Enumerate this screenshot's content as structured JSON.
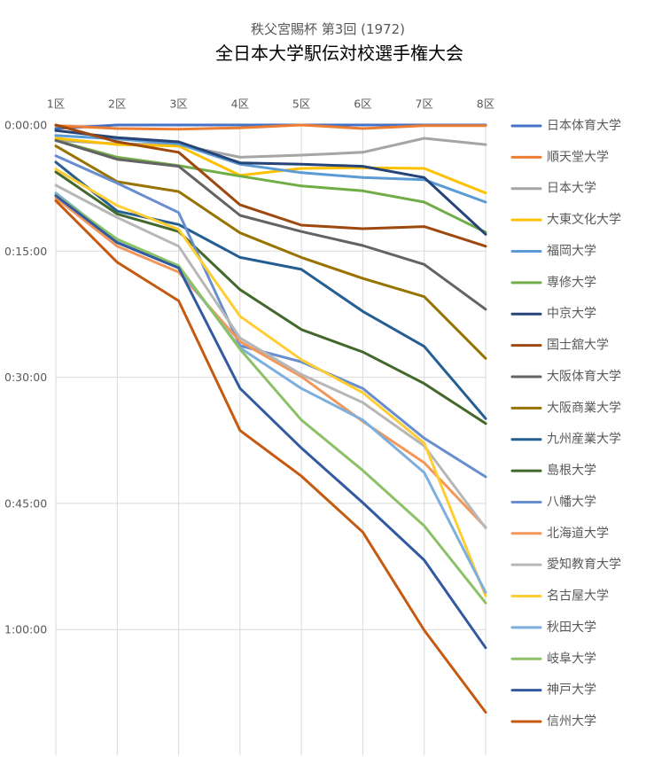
{
  "chart_data": {
    "type": "line",
    "subtitle": "秩父宮賜杯 第3回 (1972)",
    "title": "全日本大学駅伝対校選手権大会",
    "categories": [
      "1区",
      "2区",
      "3区",
      "4区",
      "5区",
      "6区",
      "7区",
      "8区"
    ],
    "x_axis_position": "top",
    "y_axis_reversed": true,
    "ylim": [
      "0:00:00",
      "1:15:00"
    ],
    "y_ticks": [
      "0:00:00",
      "0:15:00",
      "0:30:00",
      "0:45:00",
      "1:00:00"
    ],
    "grid": {
      "horizontal": true,
      "vertical": true
    },
    "legend_position": "right",
    "series": [
      {
        "name": "日本体育大学",
        "color": "#4472C4",
        "values": [
          "0:00:25",
          "0:00:00",
          "0:00:00",
          "0:00:00",
          "0:00:00",
          "0:00:00",
          "0:00:00",
          "0:00:00"
        ]
      },
      {
        "name": "順天堂大学",
        "color": "#ED7D31",
        "values": [
          "0:00:05",
          "0:00:25",
          "0:00:30",
          "0:00:20",
          "0:00:00",
          "0:00:25",
          "0:00:05",
          "0:00:05"
        ]
      },
      {
        "name": "日本大学",
        "color": "#A5A5A5",
        "values": [
          "0:01:50",
          "0:02:15",
          "0:02:20",
          "0:03:50",
          "0:03:35",
          "0:03:15",
          "0:01:35",
          "0:02:20"
        ]
      },
      {
        "name": "大東文化大学",
        "color": "#FFC000",
        "values": [
          "0:01:35",
          "0:02:20",
          "0:02:30",
          "0:06:00",
          "0:05:10",
          "0:05:05",
          "0:05:10",
          "0:08:05"
        ]
      },
      {
        "name": "福岡大学",
        "color": "#5B9BD5",
        "values": [
          "0:01:15",
          "0:01:40",
          "0:02:15",
          "0:04:40",
          "0:05:40",
          "0:06:15",
          "0:06:30",
          "0:09:10"
        ]
      },
      {
        "name": "専修大学",
        "color": "#70AD47",
        "values": [
          "0:01:50",
          "0:03:50",
          "0:04:50",
          "0:06:05",
          "0:07:15",
          "0:07:50",
          "0:09:10",
          "0:12:45"
        ]
      },
      {
        "name": "中京大学",
        "color": "#264478",
        "values": [
          "0:00:40",
          "0:01:30",
          "0:02:00",
          "0:04:30",
          "0:04:40",
          "0:04:55",
          "0:06:15",
          "0:13:00"
        ]
      },
      {
        "name": "国士舘大学",
        "color": "#9E480E",
        "values": [
          "0:00:00",
          "0:02:00",
          "0:03:15",
          "0:09:30",
          "0:11:55",
          "0:12:20",
          "0:12:05",
          "0:14:25"
        ]
      },
      {
        "name": "大阪体育大学",
        "color": "#636363",
        "values": [
          "0:01:50",
          "0:04:05",
          "0:04:55",
          "0:10:45",
          "0:12:40",
          "0:14:20",
          "0:16:35",
          "0:21:55"
        ]
      },
      {
        "name": "大阪商業大学",
        "color": "#997300",
        "values": [
          "0:02:30",
          "0:06:45",
          "0:07:55",
          "0:12:50",
          "0:15:45",
          "0:18:15",
          "0:20:25",
          "0:27:45"
        ]
      },
      {
        "name": "九州産業大学",
        "color": "#255E91",
        "values": [
          "0:04:25",
          "0:10:15",
          "0:11:50",
          "0:15:45",
          "0:17:10",
          "0:22:10",
          "0:26:20",
          "0:34:55"
        ]
      },
      {
        "name": "島根大学",
        "color": "#43682B",
        "values": [
          "0:05:35",
          "0:10:35",
          "0:12:40",
          "0:19:35",
          "0:24:20",
          "0:27:00",
          "0:30:45",
          "0:35:30"
        ]
      },
      {
        "name": "八幡大学",
        "color": "#698ED0",
        "values": [
          "0:03:40",
          "0:06:55",
          "0:10:25",
          "0:26:15",
          "0:28:10",
          "0:31:20",
          "0:37:15",
          "0:41:50"
        ]
      },
      {
        "name": "北海道大学",
        "color": "#F1975A",
        "values": [
          "0:08:40",
          "0:14:25",
          "0:17:30",
          "0:25:45",
          "0:29:55",
          "0:35:15",
          "0:40:10",
          "0:47:50"
        ]
      },
      {
        "name": "愛知教育大学",
        "color": "#B7B7B7",
        "values": [
          "0:07:10",
          "0:11:00",
          "0:14:25",
          "0:25:20",
          "0:29:40",
          "0:33:00",
          "0:38:10",
          "0:47:55"
        ]
      },
      {
        "name": "名古屋大学",
        "color": "#FFCD33",
        "values": [
          "0:05:15",
          "0:09:35",
          "0:12:25",
          "0:22:45",
          "0:27:55",
          "0:31:50",
          "0:37:50",
          "0:56:00"
        ]
      },
      {
        "name": "秋田大学",
        "color": "#7CAFDD",
        "values": [
          "0:08:05",
          "0:13:50",
          "0:17:00",
          "0:26:30",
          "0:31:20",
          "0:35:05",
          "0:41:20",
          "0:55:35"
        ]
      },
      {
        "name": "岐阜大学",
        "color": "#8CC168",
        "values": [
          "0:08:20",
          "0:13:35",
          "0:16:45",
          "0:26:40",
          "0:35:05",
          "0:41:05",
          "0:47:40",
          "0:56:50"
        ]
      },
      {
        "name": "神戸大学",
        "color": "#335AA1",
        "values": [
          "0:08:25",
          "0:14:00",
          "0:17:00",
          "0:31:20",
          "0:38:25",
          "0:44:55",
          "0:51:45",
          "1:02:10"
        ]
      },
      {
        "name": "信州大学",
        "color": "#C55A11",
        "values": [
          "0:09:00",
          "0:16:20",
          "0:20:55",
          "0:36:20",
          "0:41:45",
          "0:48:25",
          "1:00:05",
          "1:09:50"
        ]
      }
    ]
  }
}
